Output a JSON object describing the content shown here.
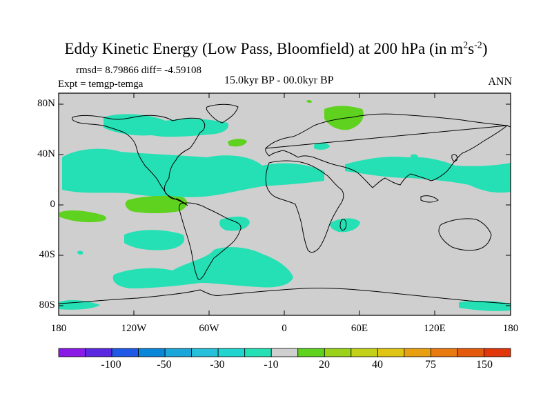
{
  "title_main": "Eddy Kinetic Energy (Low Pass, Bloomfield) at 200 hPa (in m",
  "title_sup1": "2",
  "title_mid": "s",
  "title_sup2": "-2",
  "title_end": ")",
  "stats": "rmsd= 8.79866 diff= -4.59108",
  "experiment": "Expt = temgp-temga",
  "period": "15.0kyr BP - 00.0kyr BP",
  "season": "ANN",
  "lat_labels": [
    "80N",
    "40N",
    "0",
    "40S",
    "80S"
  ],
  "lon_labels": [
    "180",
    "120W",
    "60W",
    "0",
    "60E",
    "120E",
    "180"
  ],
  "colorbar": {
    "labels": [
      "-100",
      "-50",
      "-30",
      "-10",
      "20",
      "40",
      "75",
      "150"
    ],
    "colors": [
      "#8a1be6",
      "#5a28e0",
      "#1f57e6",
      "#0a86d8",
      "#1aa6d8",
      "#27c0da",
      "#22d4d0",
      "#24e0b4",
      "#cfcfcf",
      "#5ed21e",
      "#9ad21a",
      "#c2d018",
      "#e0c414",
      "#e8a012",
      "#e87a10",
      "#e45a0c",
      "#e0360a"
    ]
  },
  "colors": {
    "land_neutral": "#cfcfcf",
    "negative_small": "#24e0b4",
    "positive_small": "#5ed21e",
    "coast": "#000000"
  }
}
